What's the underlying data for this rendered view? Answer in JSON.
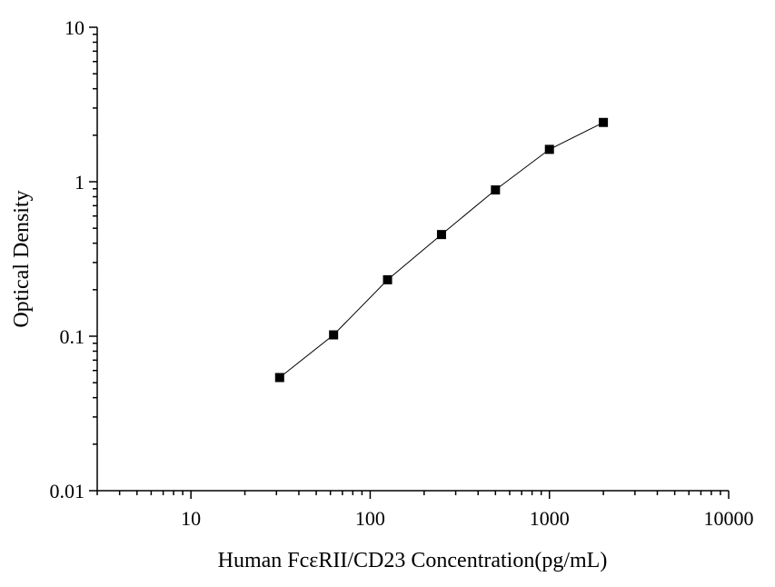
{
  "chart_data": {
    "type": "scatter",
    "title": "",
    "xlabel": "Human FcεRII/CD23  Concentration(pg/mL)",
    "ylabel": "Optical Density",
    "xscale": "log",
    "yscale": "log",
    "xlim": [
      3,
      10000
    ],
    "ylim": [
      0.01,
      10
    ],
    "x_ticks": [
      10,
      100,
      1000,
      10000
    ],
    "x_tick_labels": [
      "10",
      "100",
      "1000",
      "10000"
    ],
    "y_ticks": [
      0.01,
      0.1,
      1,
      10
    ],
    "y_tick_labels": [
      "0.01",
      "0.1",
      "1",
      "10"
    ],
    "grid": false,
    "legend": "none",
    "series": [
      {
        "x": [
          31.25,
          62.5,
          125,
          250,
          500,
          1000,
          2000
        ],
        "y": [
          0.054,
          0.102,
          0.232,
          0.455,
          0.885,
          1.62,
          2.42
        ],
        "marker": "square",
        "line": "connected",
        "color": "#000000"
      }
    ]
  }
}
